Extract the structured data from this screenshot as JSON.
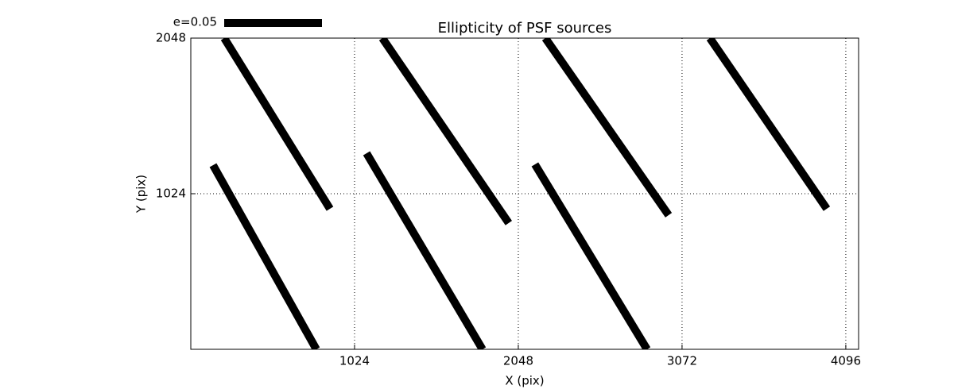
{
  "chart_data": {
    "type": "segments",
    "title": "Ellipticity of PSF sources",
    "x_label": "X (pix)",
    "y_label": "Y (pix)",
    "xlim": [
      0,
      4176
    ],
    "ylim": [
      0,
      2048
    ],
    "xticks": [
      1024,
      2048,
      3072,
      4096
    ],
    "yticks": [
      1024,
      2048
    ],
    "grid": true,
    "color": "#000000",
    "key_label": "e=0.05",
    "segments": [
      {
        "x": [
          139,
          785
        ],
        "y": [
          1212,
          0
        ]
      },
      {
        "x": [
          209,
          870
        ],
        "y": [
          2048,
          925
        ]
      },
      {
        "x": [
          1099,
          1824
        ],
        "y": [
          1290,
          0
        ]
      },
      {
        "x": [
          1198,
          1988
        ],
        "y": [
          2048,
          831
        ]
      },
      {
        "x": [
          2152,
          2853
        ],
        "y": [
          1217,
          0
        ]
      },
      {
        "x": [
          2217,
          2988
        ],
        "y": [
          2048,
          883
        ]
      },
      {
        "x": [
          3246,
          3977
        ],
        "y": [
          2048,
          925
        ]
      }
    ]
  }
}
